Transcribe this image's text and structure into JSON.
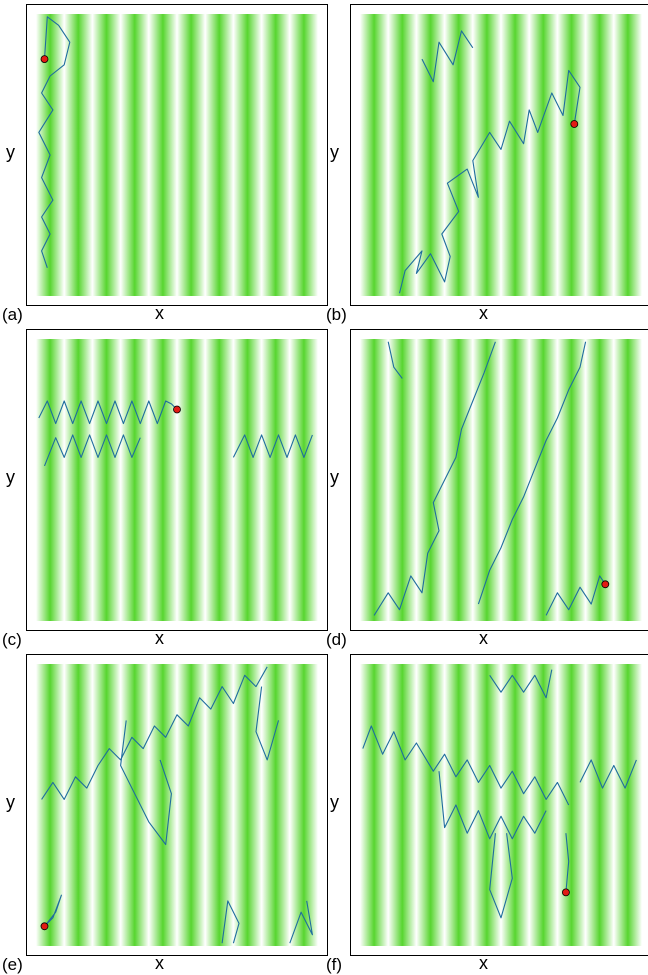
{
  "colors": {
    "stripe": "#57d52f",
    "trail": "#1f6d9e",
    "marker": "#e21b14"
  },
  "panels": [
    {
      "tag": "(a)",
      "xlabel": "x",
      "ylabel": "y",
      "end_point": [
        0.03,
        0.84
      ],
      "segments": [
        [
          [
            0.04,
            0.1
          ],
          [
            0.02,
            0.16
          ],
          [
            0.05,
            0.22
          ],
          [
            0.02,
            0.28
          ],
          [
            0.06,
            0.34
          ],
          [
            0.02,
            0.42
          ],
          [
            0.05,
            0.5
          ],
          [
            0.01,
            0.58
          ],
          [
            0.06,
            0.66
          ],
          [
            0.02,
            0.72
          ],
          [
            0.05,
            0.78
          ],
          [
            0.1,
            0.82
          ],
          [
            0.12,
            0.9
          ],
          [
            0.08,
            0.96
          ],
          [
            0.04,
            0.99
          ],
          [
            0.03,
            0.84
          ]
        ]
      ]
    },
    {
      "tag": "(b)",
      "xlabel": "x",
      "ylabel": "y",
      "end_point": [
        0.76,
        0.61
      ],
      "segments": [
        [
          [
            0.14,
            0.01
          ],
          [
            0.16,
            0.09
          ],
          [
            0.22,
            0.16
          ],
          [
            0.2,
            0.08
          ],
          [
            0.25,
            0.15
          ],
          [
            0.3,
            0.05
          ],
          [
            0.32,
            0.14
          ],
          [
            0.29,
            0.22
          ],
          [
            0.35,
            0.3
          ],
          [
            0.31,
            0.4
          ],
          [
            0.38,
            0.45
          ],
          [
            0.42,
            0.35
          ],
          [
            0.4,
            0.48
          ],
          [
            0.46,
            0.58
          ],
          [
            0.5,
            0.52
          ],
          [
            0.53,
            0.62
          ],
          [
            0.58,
            0.54
          ],
          [
            0.6,
            0.66
          ],
          [
            0.63,
            0.58
          ],
          [
            0.68,
            0.72
          ],
          [
            0.72,
            0.64
          ],
          [
            0.74,
            0.8
          ],
          [
            0.78,
            0.74
          ],
          [
            0.76,
            0.61
          ]
        ],
        [
          [
            0.22,
            0.84
          ],
          [
            0.26,
            0.76
          ],
          [
            0.28,
            0.9
          ],
          [
            0.33,
            0.82
          ],
          [
            0.36,
            0.94
          ],
          [
            0.4,
            0.88
          ]
        ]
      ]
    },
    {
      "tag": "(c)",
      "xlabel": "x",
      "ylabel": "y",
      "end_point": [
        0.5,
        0.75
      ],
      "segments": [
        [
          [
            0.01,
            0.72
          ],
          [
            0.04,
            0.78
          ],
          [
            0.07,
            0.7
          ],
          [
            0.1,
            0.78
          ],
          [
            0.13,
            0.7
          ],
          [
            0.16,
            0.78
          ],
          [
            0.19,
            0.7
          ],
          [
            0.22,
            0.78
          ],
          [
            0.25,
            0.7
          ],
          [
            0.28,
            0.78
          ],
          [
            0.31,
            0.7
          ],
          [
            0.34,
            0.78
          ],
          [
            0.37,
            0.7
          ],
          [
            0.4,
            0.78
          ],
          [
            0.43,
            0.7
          ],
          [
            0.46,
            0.78
          ],
          [
            0.48,
            0.77
          ],
          [
            0.5,
            0.75
          ]
        ],
        [
          [
            0.03,
            0.55
          ],
          [
            0.07,
            0.65
          ],
          [
            0.1,
            0.58
          ],
          [
            0.13,
            0.66
          ],
          [
            0.16,
            0.58
          ],
          [
            0.19,
            0.66
          ],
          [
            0.22,
            0.58
          ],
          [
            0.25,
            0.66
          ],
          [
            0.28,
            0.58
          ],
          [
            0.31,
            0.66
          ],
          [
            0.34,
            0.58
          ],
          [
            0.37,
            0.65
          ]
        ],
        [
          [
            0.7,
            0.58
          ],
          [
            0.74,
            0.66
          ],
          [
            0.77,
            0.58
          ],
          [
            0.8,
            0.66
          ],
          [
            0.83,
            0.58
          ],
          [
            0.86,
            0.66
          ],
          [
            0.89,
            0.58
          ],
          [
            0.92,
            0.66
          ],
          [
            0.95,
            0.58
          ],
          [
            0.98,
            0.66
          ]
        ]
      ]
    },
    {
      "tag": "(d)",
      "xlabel": "x",
      "ylabel": "y",
      "end_point": [
        0.87,
        0.13
      ],
      "segments": [
        [
          [
            0.1,
            0.99
          ],
          [
            0.12,
            0.9
          ],
          [
            0.15,
            0.86
          ]
        ],
        [
          [
            0.05,
            0.02
          ],
          [
            0.1,
            0.1
          ],
          [
            0.14,
            0.04
          ],
          [
            0.18,
            0.16
          ],
          [
            0.22,
            0.1
          ],
          [
            0.24,
            0.24
          ],
          [
            0.28,
            0.32
          ],
          [
            0.26,
            0.42
          ],
          [
            0.3,
            0.5
          ],
          [
            0.34,
            0.58
          ],
          [
            0.36,
            0.68
          ],
          [
            0.4,
            0.78
          ],
          [
            0.44,
            0.88
          ],
          [
            0.48,
            0.99
          ]
        ],
        [
          [
            0.42,
            0.06
          ],
          [
            0.46,
            0.18
          ],
          [
            0.5,
            0.26
          ],
          [
            0.54,
            0.36
          ],
          [
            0.58,
            0.44
          ],
          [
            0.62,
            0.54
          ],
          [
            0.66,
            0.64
          ],
          [
            0.7,
            0.72
          ],
          [
            0.74,
            0.82
          ],
          [
            0.78,
            0.9
          ],
          [
            0.8,
            0.99
          ]
        ],
        [
          [
            0.66,
            0.02
          ],
          [
            0.7,
            0.1
          ],
          [
            0.74,
            0.04
          ],
          [
            0.78,
            0.12
          ],
          [
            0.82,
            0.06
          ],
          [
            0.85,
            0.16
          ],
          [
            0.87,
            0.13
          ]
        ]
      ]
    },
    {
      "tag": "(e)",
      "xlabel": "x",
      "ylabel": "y",
      "end_point": [
        0.03,
        0.07
      ],
      "segments": [
        [
          [
            0.02,
            0.52
          ],
          [
            0.06,
            0.58
          ],
          [
            0.1,
            0.52
          ],
          [
            0.14,
            0.6
          ],
          [
            0.18,
            0.56
          ],
          [
            0.22,
            0.64
          ],
          [
            0.26,
            0.7
          ],
          [
            0.3,
            0.66
          ],
          [
            0.34,
            0.74
          ],
          [
            0.38,
            0.7
          ],
          [
            0.42,
            0.78
          ],
          [
            0.46,
            0.74
          ],
          [
            0.5,
            0.82
          ],
          [
            0.54,
            0.78
          ],
          [
            0.58,
            0.88
          ],
          [
            0.62,
            0.84
          ],
          [
            0.66,
            0.92
          ],
          [
            0.7,
            0.86
          ],
          [
            0.74,
            0.96
          ],
          [
            0.78,
            0.92
          ],
          [
            0.82,
            0.99
          ]
        ],
        [
          [
            0.32,
            0.8
          ],
          [
            0.3,
            0.64
          ],
          [
            0.34,
            0.56
          ],
          [
            0.4,
            0.44
          ],
          [
            0.46,
            0.36
          ],
          [
            0.48,
            0.54
          ],
          [
            0.44,
            0.66
          ]
        ],
        [
          [
            0.8,
            0.92
          ],
          [
            0.78,
            0.76
          ],
          [
            0.82,
            0.66
          ],
          [
            0.86,
            0.8
          ]
        ],
        [
          [
            0.66,
            0.01
          ],
          [
            0.68,
            0.16
          ],
          [
            0.72,
            0.08
          ],
          [
            0.7,
            0.01
          ]
        ],
        [
          [
            0.9,
            0.01
          ],
          [
            0.94,
            0.12
          ],
          [
            0.98,
            0.04
          ],
          [
            0.96,
            0.16
          ]
        ],
        [
          [
            0.03,
            0.07
          ],
          [
            0.06,
            0.1
          ],
          [
            0.09,
            0.18
          ],
          [
            0.07,
            0.12
          ],
          [
            0.03,
            0.07
          ]
        ]
      ]
    },
    {
      "tag": "(f)",
      "xlabel": "x",
      "ylabel": "y",
      "end_point": [
        0.73,
        0.19
      ],
      "segments": [
        [
          [
            0.01,
            0.7
          ],
          [
            0.04,
            0.78
          ],
          [
            0.08,
            0.68
          ],
          [
            0.12,
            0.76
          ],
          [
            0.16,
            0.66
          ],
          [
            0.2,
            0.72
          ],
          [
            0.26,
            0.62
          ],
          [
            0.3,
            0.68
          ],
          [
            0.34,
            0.6
          ],
          [
            0.38,
            0.66
          ],
          [
            0.42,
            0.58
          ],
          [
            0.46,
            0.64
          ],
          [
            0.5,
            0.56
          ],
          [
            0.54,
            0.62
          ],
          [
            0.58,
            0.54
          ],
          [
            0.62,
            0.6
          ],
          [
            0.66,
            0.52
          ],
          [
            0.7,
            0.58
          ],
          [
            0.74,
            0.5
          ]
        ],
        [
          [
            0.46,
            0.96
          ],
          [
            0.5,
            0.9
          ],
          [
            0.54,
            0.96
          ],
          [
            0.58,
            0.9
          ],
          [
            0.62,
            0.96
          ],
          [
            0.66,
            0.88
          ],
          [
            0.68,
            0.98
          ]
        ],
        [
          [
            0.28,
            0.62
          ],
          [
            0.3,
            0.42
          ],
          [
            0.34,
            0.5
          ],
          [
            0.38,
            0.4
          ],
          [
            0.42,
            0.48
          ],
          [
            0.46,
            0.38
          ],
          [
            0.5,
            0.46
          ],
          [
            0.54,
            0.38
          ],
          [
            0.58,
            0.46
          ],
          [
            0.62,
            0.4
          ],
          [
            0.66,
            0.48
          ]
        ],
        [
          [
            0.48,
            0.4
          ],
          [
            0.46,
            0.2
          ],
          [
            0.5,
            0.1
          ],
          [
            0.54,
            0.24
          ],
          [
            0.52,
            0.4
          ]
        ],
        [
          [
            0.78,
            0.58
          ],
          [
            0.82,
            0.66
          ],
          [
            0.86,
            0.56
          ],
          [
            0.9,
            0.64
          ],
          [
            0.94,
            0.56
          ],
          [
            0.98,
            0.66
          ]
        ],
        [
          [
            0.73,
            0.4
          ],
          [
            0.74,
            0.3
          ],
          [
            0.73,
            0.19
          ]
        ]
      ]
    }
  ]
}
